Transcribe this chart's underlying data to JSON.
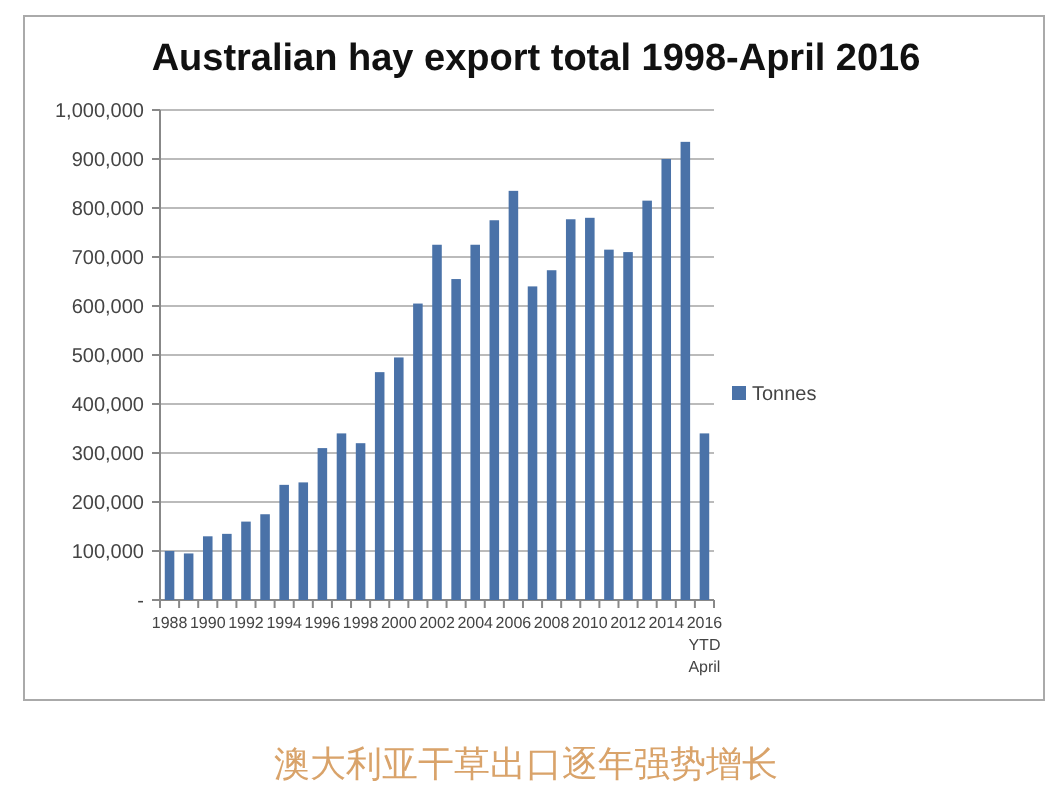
{
  "chart_data": {
    "type": "bar",
    "title": "Australian hay export total 1998-April 2016",
    "categories": [
      "1988",
      null,
      "1990",
      null,
      "1992",
      null,
      "1994",
      null,
      "1996",
      null,
      "1998",
      null,
      "2000",
      null,
      "2002",
      null,
      "2004",
      null,
      "2006",
      null,
      "2008",
      null,
      "2010",
      null,
      "2012",
      null,
      "2014",
      null,
      "2016 YTD April"
    ],
    "series": [
      {
        "name": "Tonnes",
        "color": "#4a72a8",
        "values": [
          100000,
          95000,
          130000,
          135000,
          160000,
          175000,
          235000,
          240000,
          310000,
          340000,
          320000,
          465000,
          495000,
          605000,
          725000,
          655000,
          725000,
          775000,
          835000,
          640000,
          673000,
          777000,
          780000,
          715000,
          710000,
          815000,
          900000,
          935000,
          340000
        ]
      }
    ],
    "ylim": [
      0,
      1000000
    ],
    "yticks": [
      {
        "value": 0,
        "label": "-"
      },
      {
        "value": 100000,
        "label": "100,000"
      },
      {
        "value": 200000,
        "label": "200,000"
      },
      {
        "value": 300000,
        "label": "300,000"
      },
      {
        "value": 400000,
        "label": "400,000"
      },
      {
        "value": 500000,
        "label": "500,000"
      },
      {
        "value": 600000,
        "label": "600,000"
      },
      {
        "value": 700000,
        "label": "700,000"
      },
      {
        "value": 800000,
        "label": "800,000"
      },
      {
        "value": 900000,
        "label": "900,000"
      },
      {
        "value": 1000000,
        "label": "1,000,000"
      }
    ],
    "grid": "y",
    "legend": "right",
    "annotations": [
      "澳大利亚干草出口逐年强势增长"
    ]
  }
}
